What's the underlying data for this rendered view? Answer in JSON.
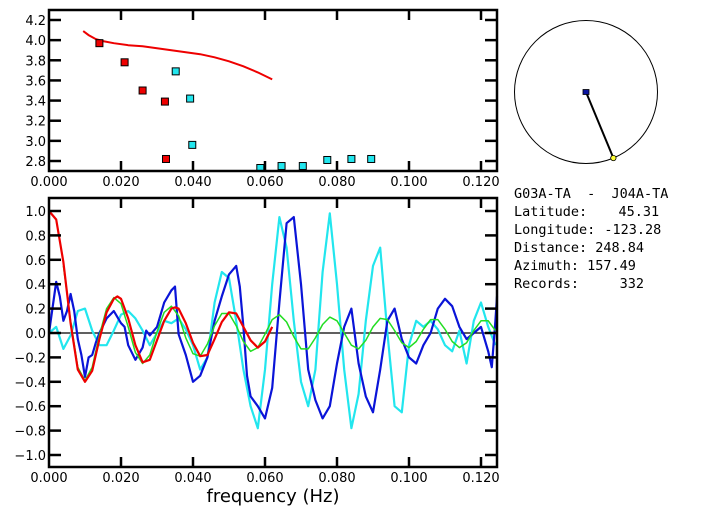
{
  "colors": {
    "red": "#ee0000",
    "cyan": "#22e6ee",
    "blue": "#0a14d8",
    "green": "#22dd22",
    "black": "#000000",
    "yellow": "#ffff33",
    "navy": "#0a14a0"
  },
  "chart_data": [
    {
      "type": "scatter",
      "name": "dispersion-plot",
      "xlim": [
        0.0,
        0.125
      ],
      "ylim": [
        2.72,
        4.25
      ],
      "xticks": [
        "0.000",
        "0.020",
        "0.040",
        "0.060",
        "0.080",
        "0.100",
        "0.120"
      ],
      "xtick_values": [
        0.0,
        0.02,
        0.04,
        0.06,
        0.08,
        0.1,
        0.12
      ],
      "yticks": [
        "2.8",
        "3.0",
        "3.2",
        "3.4",
        "3.6",
        "3.8",
        "4.0",
        "4.2"
      ],
      "ytick_values": [
        2.8,
        3.0,
        3.2,
        3.4,
        3.6,
        3.8,
        4.0,
        4.2
      ],
      "series": [
        {
          "name": "model-curve",
          "kind": "line",
          "color": "red",
          "x": [
            0.0095,
            0.011,
            0.013,
            0.015,
            0.018,
            0.022,
            0.026,
            0.03,
            0.034,
            0.038,
            0.042,
            0.046,
            0.05,
            0.054,
            0.058,
            0.062
          ],
          "y": [
            4.09,
            4.05,
            4.01,
            3.99,
            3.97,
            3.95,
            3.94,
            3.92,
            3.9,
            3.88,
            3.86,
            3.83,
            3.79,
            3.74,
            3.68,
            3.61
          ]
        },
        {
          "name": "red-picks",
          "kind": "points",
          "color": "red",
          "x": [
            0.014,
            0.021,
            0.026,
            0.0322,
            0.0325
          ],
          "y": [
            3.97,
            3.78,
            3.5,
            3.39,
            2.82
          ]
        },
        {
          "name": "cyan-picks",
          "kind": "points",
          "color": "cyan",
          "x": [
            0.0352,
            0.0392,
            0.0398,
            0.0587,
            0.0646,
            0.0705,
            0.0773,
            0.084,
            0.0895
          ],
          "y": [
            3.69,
            3.42,
            2.96,
            2.72,
            2.75,
            2.75,
            2.81,
            2.82,
            2.82
          ]
        }
      ]
    },
    {
      "type": "line",
      "name": "coherency-plot",
      "xlabel": "frequency (Hz)",
      "xlim": [
        0.0,
        0.125
      ],
      "ylim": [
        -1.1,
        1.1
      ],
      "xticks": [
        "0.000",
        "0.020",
        "0.040",
        "0.060",
        "0.080",
        "0.100",
        "0.120"
      ],
      "xtick_values": [
        0.0,
        0.02,
        0.04,
        0.06,
        0.08,
        0.1,
        0.12
      ],
      "yticks": [
        "1.0",
        "0.8",
        "0.6",
        "0.4",
        "0.2",
        "0.0",
        "-0.2",
        "-0.4",
        "-0.6",
        "-0.8",
        "-1.0"
      ],
      "ytick_values": [
        1.0,
        0.8,
        0.6,
        0.4,
        0.2,
        0.0,
        -0.2,
        -0.4,
        -0.6,
        -0.8,
        -1.0
      ],
      "zero_line": true,
      "series": [
        {
          "name": "bessel-red",
          "color": "red",
          "x": [
            0.0,
            0.002,
            0.004,
            0.006,
            0.008,
            0.01,
            0.012,
            0.014,
            0.016,
            0.018,
            0.019,
            0.02,
            0.022,
            0.024,
            0.026,
            0.028,
            0.03,
            0.032,
            0.034,
            0.035,
            0.036,
            0.038,
            0.04,
            0.042,
            0.044,
            0.046,
            0.048,
            0.05,
            0.052,
            0.054,
            0.056,
            0.058,
            0.06,
            0.062
          ],
          "y": [
            1.0,
            0.93,
            0.58,
            0.08,
            -0.3,
            -0.4,
            -0.31,
            -0.05,
            0.17,
            0.28,
            0.3,
            0.28,
            0.12,
            -0.1,
            -0.24,
            -0.22,
            -0.06,
            0.1,
            0.2,
            0.21,
            0.2,
            0.08,
            -0.08,
            -0.19,
            -0.18,
            -0.05,
            0.09,
            0.17,
            0.16,
            0.05,
            -0.06,
            -0.12,
            -0.07,
            0.05
          ]
        },
        {
          "name": "bessel-green",
          "color": "green",
          "x": [
            0.004,
            0.006,
            0.008,
            0.01,
            0.012,
            0.014,
            0.016,
            0.018,
            0.02,
            0.022,
            0.024,
            0.026,
            0.028,
            0.03,
            0.032,
            0.034,
            0.036,
            0.038,
            0.04,
            0.042,
            0.044,
            0.046,
            0.048,
            0.05,
            0.052,
            0.054,
            0.056,
            0.058,
            0.06,
            0.062,
            0.064,
            0.066,
            0.068,
            0.07,
            0.072,
            0.074,
            0.076,
            0.078,
            0.08,
            0.082,
            0.084,
            0.086,
            0.088,
            0.09,
            0.092,
            0.094,
            0.096,
            0.098,
            0.1,
            0.102,
            0.104,
            0.106,
            0.108,
            0.11,
            0.112,
            0.114,
            0.116,
            0.118,
            0.12,
            0.122,
            0.124
          ],
          "y": [
            0.55,
            0.1,
            -0.28,
            -0.39,
            -0.28,
            -0.02,
            0.2,
            0.29,
            0.24,
            0.05,
            -0.16,
            -0.25,
            -0.18,
            0.01,
            0.17,
            0.22,
            0.14,
            -0.04,
            -0.17,
            -0.19,
            -0.09,
            0.06,
            0.16,
            0.16,
            0.06,
            -0.07,
            -0.15,
            -0.12,
            -0.01,
            0.11,
            0.15,
            0.09,
            -0.03,
            -0.13,
            -0.13,
            -0.04,
            0.07,
            0.13,
            0.1,
            0.0,
            -0.1,
            -0.13,
            -0.06,
            0.05,
            0.12,
            0.11,
            0.02,
            -0.08,
            -0.12,
            -0.07,
            0.03,
            0.11,
            0.11,
            0.03,
            -0.07,
            -0.12,
            -0.08,
            0.02,
            0.1,
            0.1,
            0.02
          ]
        },
        {
          "name": "observed-blue",
          "color": "blue",
          "x": [
            0.0,
            0.002,
            0.003,
            0.004,
            0.005,
            0.006,
            0.007,
            0.008,
            0.009,
            0.01,
            0.011,
            0.012,
            0.013,
            0.014,
            0.016,
            0.018,
            0.02,
            0.021,
            0.022,
            0.024,
            0.026,
            0.027,
            0.028,
            0.03,
            0.032,
            0.034,
            0.035,
            0.036,
            0.038,
            0.04,
            0.042,
            0.044,
            0.046,
            0.048,
            0.05,
            0.052,
            0.053,
            0.054,
            0.055,
            0.056,
            0.058,
            0.06,
            0.062,
            0.063,
            0.064,
            0.066,
            0.068,
            0.07,
            0.072,
            0.074,
            0.076,
            0.078,
            0.08,
            0.082,
            0.084,
            0.086,
            0.088,
            0.09,
            0.092,
            0.094,
            0.096,
            0.098,
            0.1,
            0.102,
            0.104,
            0.106,
            0.108,
            0.11,
            0.112,
            0.114,
            0.116,
            0.118,
            0.12,
            0.122,
            0.123,
            0.124,
            0.125
          ],
          "y": [
            0.0,
            0.42,
            0.3,
            0.1,
            0.18,
            0.32,
            0.18,
            -0.05,
            -0.18,
            -0.36,
            -0.2,
            -0.18,
            -0.08,
            0.0,
            0.12,
            0.18,
            0.08,
            0.05,
            -0.1,
            -0.22,
            -0.12,
            0.02,
            -0.02,
            0.05,
            0.25,
            0.35,
            0.38,
            -0.01,
            -0.18,
            -0.4,
            -0.35,
            -0.2,
            0.1,
            0.3,
            0.48,
            0.55,
            0.38,
            0.05,
            -0.35,
            -0.52,
            -0.6,
            -0.7,
            -0.45,
            -0.1,
            0.25,
            0.9,
            0.95,
            0.4,
            -0.3,
            -0.55,
            -0.7,
            -0.6,
            -0.25,
            0.05,
            0.2,
            -0.25,
            -0.52,
            -0.65,
            -0.3,
            0.1,
            0.2,
            -0.05,
            -0.2,
            -0.25,
            -0.1,
            0.0,
            0.2,
            0.28,
            0.22,
            0.05,
            -0.05,
            0.0,
            0.05,
            -0.15,
            -0.28,
            0.1,
            0.3
          ]
        },
        {
          "name": "observed-cyan",
          "color": "cyan",
          "x": [
            0.0,
            0.002,
            0.004,
            0.006,
            0.008,
            0.01,
            0.012,
            0.014,
            0.016,
            0.018,
            0.02,
            0.022,
            0.024,
            0.026,
            0.028,
            0.03,
            0.032,
            0.034,
            0.036,
            0.038,
            0.04,
            0.042,
            0.044,
            0.046,
            0.048,
            0.05,
            0.052,
            0.054,
            0.056,
            0.058,
            0.06,
            0.062,
            0.064,
            0.066,
            0.068,
            0.07,
            0.072,
            0.074,
            0.076,
            0.078,
            0.08,
            0.082,
            0.084,
            0.086,
            0.088,
            0.09,
            0.092,
            0.094,
            0.096,
            0.098,
            0.1,
            0.102,
            0.104,
            0.106,
            0.108,
            0.11,
            0.112,
            0.114,
            0.116,
            0.118,
            0.12,
            0.122,
            0.124
          ],
          "y": [
            0.0,
            0.05,
            -0.13,
            -0.02,
            0.18,
            0.2,
            0.02,
            -0.1,
            -0.1,
            0.02,
            0.15,
            0.18,
            0.12,
            0.02,
            -0.1,
            0.0,
            0.1,
            0.08,
            0.12,
            0.03,
            -0.1,
            -0.3,
            -0.2,
            0.25,
            0.5,
            0.45,
            0.1,
            -0.3,
            -0.6,
            -0.78,
            -0.3,
            0.4,
            0.95,
            0.7,
            0.1,
            -0.4,
            -0.6,
            -0.3,
            0.5,
            0.98,
            0.4,
            -0.3,
            -0.78,
            -0.5,
            0.1,
            0.55,
            0.7,
            0.0,
            -0.6,
            -0.65,
            -0.1,
            0.1,
            0.05,
            0.1,
            0.03,
            -0.1,
            -0.15,
            0.02,
            -0.25,
            0.1,
            0.25,
            0.05,
            -0.1
          ]
        }
      ]
    }
  ],
  "azimuth_map": {
    "azimuth_deg": 157.49,
    "center_marker": "blue",
    "edge_marker": "yellow"
  },
  "info": {
    "pair": "G03A-TA  -  J04A-TA",
    "latitude_label": "Latitude:",
    "latitude_value": "45.31",
    "longitude_label": "Longitude:",
    "longitude_value": "-123.28",
    "distance_label": "Distance:",
    "distance_value": "248.84",
    "azimuth_label": "Azimuth:",
    "azimuth_value": "157.49",
    "records_label": "Records:",
    "records_value": "332"
  }
}
